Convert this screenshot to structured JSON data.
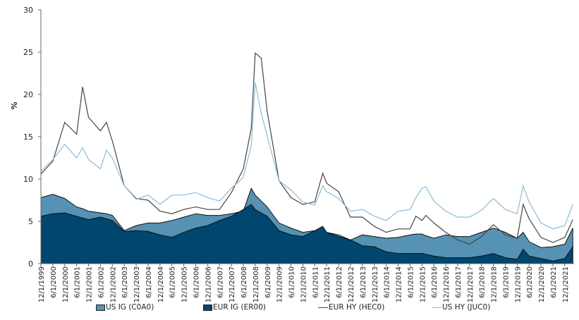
{
  "chart_data": {
    "type": "area",
    "ylabel": "%",
    "ylim": [
      0,
      30
    ],
    "yticks": [
      "0",
      "5",
      "10",
      "15",
      "20",
      "25",
      "30"
    ],
    "grid": false,
    "legend_position": "bottom",
    "xtick_labels": [
      "12/1/1999",
      "6/1/2000",
      "12/1/2000",
      "6/1/2001",
      "12/1/2001",
      "6/1/2002",
      "12/1/2002",
      "6/1/2003",
      "12/1/2003",
      "6/1/2004",
      "12/1/2004",
      "6/1/2005",
      "12/1/2005",
      "6/1/2006",
      "12/1/2006",
      "6/1/2007",
      "12/1/2007",
      "6/1/2008",
      "12/1/2008",
      "6/1/2009",
      "12/1/2009",
      "6/1/2010",
      "12/1/2010",
      "6/1/2011",
      "12/1/2011",
      "6/1/2012",
      "12/1/2012",
      "6/1/2013",
      "12/1/2013",
      "6/1/2014",
      "12/1/2014",
      "6/1/2015",
      "12/1/2015",
      "6/1/2016",
      "12/1/2016",
      "6/1/2017",
      "12/1/2017",
      "6/1/2018",
      "12/1/2018",
      "6/1/2019",
      "12/1/2019",
      "6/1/2020",
      "12/1/2020",
      "6/1/2021",
      "12/1/2021"
    ],
    "x": [
      "12/1/1999",
      "6/1/2000",
      "12/1/2000",
      "6/1/2001",
      "9/1/2001",
      "12/1/2001",
      "6/1/2002",
      "9/1/2002",
      "12/1/2002",
      "6/1/2003",
      "12/1/2003",
      "6/1/2004",
      "12/1/2004",
      "6/1/2005",
      "12/1/2005",
      "6/1/2006",
      "12/1/2006",
      "6/1/2007",
      "12/1/2007",
      "6/1/2008",
      "10/1/2008",
      "12/1/2008",
      "3/1/2009",
      "6/1/2009",
      "12/1/2009",
      "6/1/2010",
      "12/1/2010",
      "6/1/2011",
      "10/1/2011",
      "12/1/2011",
      "6/1/2012",
      "12/1/2012",
      "6/1/2013",
      "12/1/2013",
      "6/1/2014",
      "12/1/2014",
      "6/1/2015",
      "9/1/2015",
      "12/1/2015",
      "2/1/2016",
      "6/1/2016",
      "12/1/2016",
      "6/1/2017",
      "12/1/2017",
      "6/1/2018",
      "12/1/2018",
      "6/1/2019",
      "12/1/2019",
      "3/1/2020",
      "6/1/2020",
      "12/1/2020",
      "6/1/2021",
      "12/1/2021",
      "4/1/2022"
    ],
    "series": [
      {
        "name": "US IG (C0A0)",
        "kind": "area",
        "color": "#5592b3",
        "values": [
          7.8,
          8.2,
          7.7,
          6.7,
          6.5,
          6.2,
          6.0,
          5.9,
          5.7,
          3.9,
          4.5,
          4.8,
          4.8,
          5.1,
          5.5,
          5.9,
          5.7,
          5.7,
          5.9,
          6.2,
          8.9,
          8.1,
          7.4,
          6.7,
          4.8,
          4.2,
          3.7,
          3.9,
          4.2,
          3.7,
          3.4,
          2.8,
          3.4,
          3.2,
          3.0,
          3.1,
          3.4,
          3.5,
          3.5,
          3.3,
          3.0,
          3.4,
          3.2,
          3.2,
          3.7,
          4.2,
          3.7,
          3.0,
          3.7,
          2.6,
          1.9,
          2.0,
          2.3,
          4.2
        ]
      },
      {
        "name": "EUR IG (ER00)",
        "kind": "area",
        "color": "#00466f",
        "values": [
          5.6,
          5.9,
          6.0,
          5.6,
          5.4,
          5.2,
          5.5,
          5.3,
          5.1,
          3.8,
          3.9,
          3.8,
          3.4,
          3.1,
          3.7,
          4.2,
          4.5,
          5.1,
          5.6,
          6.4,
          7.0,
          6.4,
          6.0,
          5.6,
          3.9,
          3.4,
          3.2,
          3.9,
          4.4,
          3.7,
          3.2,
          2.8,
          2.1,
          2.0,
          1.4,
          1.2,
          1.2,
          1.2,
          1.2,
          1.1,
          0.9,
          0.7,
          0.7,
          0.7,
          0.9,
          1.2,
          0.7,
          0.5,
          1.7,
          0.9,
          0.6,
          0.3,
          0.6,
          2.0
        ]
      },
      {
        "name": "EUR HY (HEC0)",
        "kind": "line",
        "color": "#4a4242",
        "values": [
          10.6,
          12.1,
          16.7,
          15.3,
          20.9,
          17.3,
          15.7,
          16.7,
          14.5,
          9.2,
          7.7,
          7.5,
          6.2,
          5.9,
          6.4,
          6.7,
          6.4,
          6.4,
          8.4,
          11.2,
          16,
          24.9,
          24.3,
          18,
          9.8,
          7.8,
          7.0,
          7.3,
          10.7,
          9.5,
          8.5,
          5.5,
          5.5,
          4.4,
          3.7,
          4.1,
          4.1,
          5.6,
          5.1,
          5.7,
          4.8,
          3.7,
          2.8,
          2.3,
          3.2,
          4.6,
          3.4,
          3.0,
          7.0,
          5.3,
          3.1,
          2.5,
          3.1,
          5.2
        ]
      },
      {
        "name": "US HY (JUC0)",
        "kind": "line",
        "color": "#8dbbd8",
        "values": [
          10.9,
          12.3,
          14.1,
          12.5,
          13.7,
          12.3,
          11.2,
          13.4,
          12.5,
          9.2,
          7.6,
          8.1,
          7.0,
          8.1,
          8.1,
          8.4,
          7.8,
          7.4,
          8.9,
          10.2,
          14,
          21.4,
          17.8,
          15.1,
          9.8,
          8.7,
          7.3,
          6.9,
          9.2,
          8.5,
          7.7,
          6.2,
          6.4,
          5.6,
          5.1,
          6.2,
          6.4,
          7.8,
          8.9,
          9.1,
          7.4,
          6.2,
          5.5,
          5.5,
          6.3,
          7.7,
          6.4,
          5.9,
          9.2,
          7.3,
          4.8,
          4.1,
          4.5,
          7.0
        ]
      }
    ]
  }
}
